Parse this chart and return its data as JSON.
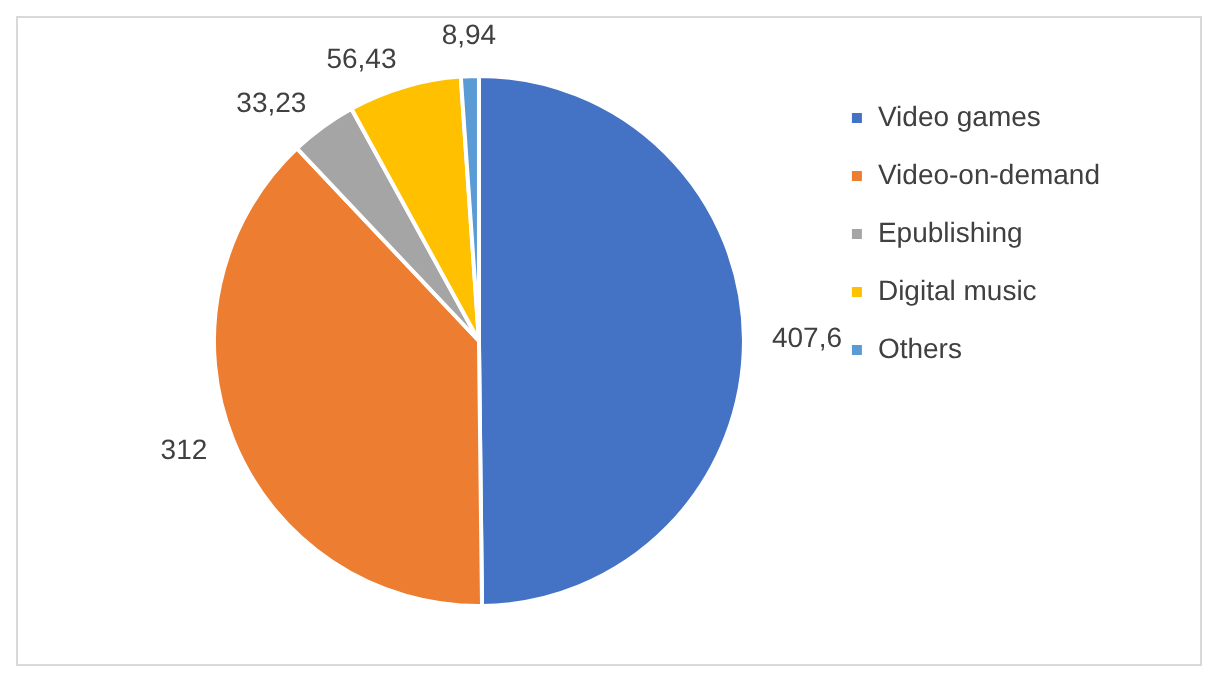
{
  "chart_data": {
    "type": "pie",
    "categories": [
      "Video games",
      "Video-on-demand",
      "Epublishing",
      "Digital music",
      "Others"
    ],
    "values": [
      407.6,
      312,
      33.23,
      56.43,
      8.94
    ],
    "value_labels": [
      "407,6",
      "312",
      "33,23",
      "56,43",
      "8,94"
    ],
    "colors": [
      "#4472c4",
      "#ed7d31",
      "#a5a5a5",
      "#ffc000",
      "#5b9bd5"
    ],
    "legend": "right"
  }
}
